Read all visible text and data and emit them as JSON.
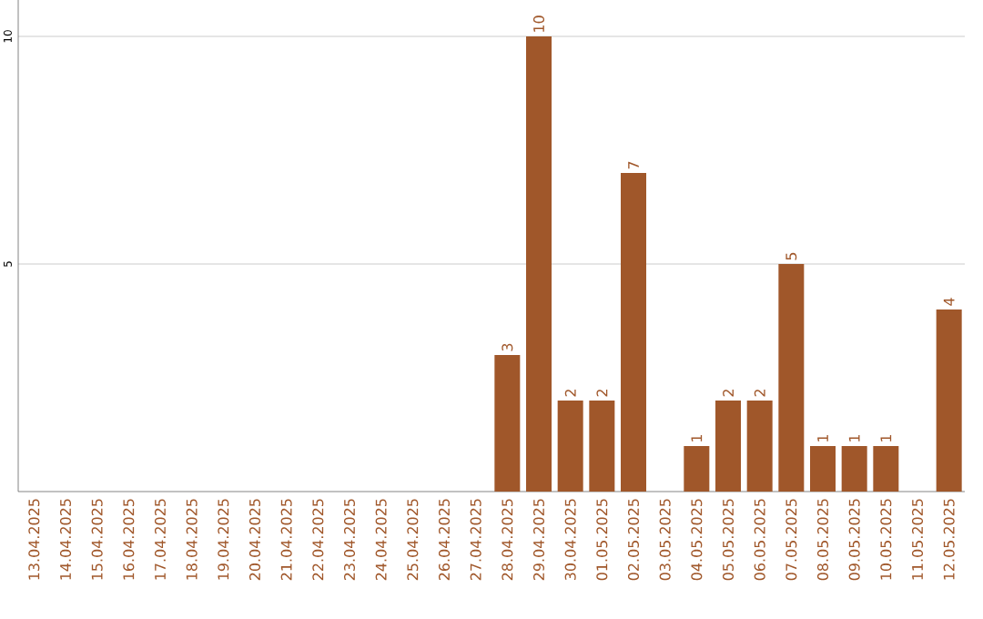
{
  "chart_data": {
    "type": "bar",
    "categories": [
      "13.04.2025",
      "14.04.2025",
      "15.04.2025",
      "16.04.2025",
      "17.04.2025",
      "18.04.2025",
      "19.04.2025",
      "20.04.2025",
      "21.04.2025",
      "22.04.2025",
      "23.04.2025",
      "24.04.2025",
      "25.04.2025",
      "26.04.2025",
      "27.04.2025",
      "28.04.2025",
      "29.04.2025",
      "30.04.2025",
      "01.05.2025",
      "02.05.2025",
      "03.05.2025",
      "04.05.2025",
      "05.05.2025",
      "06.05.2025",
      "07.05.2025",
      "08.05.2025",
      "09.05.2025",
      "10.05.2025",
      "11.05.2025",
      "12.05.2025"
    ],
    "values": [
      0,
      0,
      0,
      0,
      0,
      0,
      0,
      0,
      0,
      0,
      0,
      0,
      0,
      0,
      0,
      3,
      10,
      2,
      2,
      7,
      0,
      1,
      2,
      2,
      5,
      1,
      1,
      1,
      0,
      4
    ],
    "value_labels": [
      null,
      null,
      null,
      null,
      null,
      null,
      null,
      null,
      null,
      null,
      null,
      null,
      null,
      null,
      null,
      "3",
      "10",
      "2",
      "2",
      "7",
      null,
      "1",
      "2",
      "2",
      "5",
      "1",
      "1",
      "1",
      null,
      "4"
    ],
    "color": "#a0572a",
    "ylim": [
      0,
      10.8
    ],
    "yticks": [
      5,
      10
    ],
    "grid": "y"
  }
}
